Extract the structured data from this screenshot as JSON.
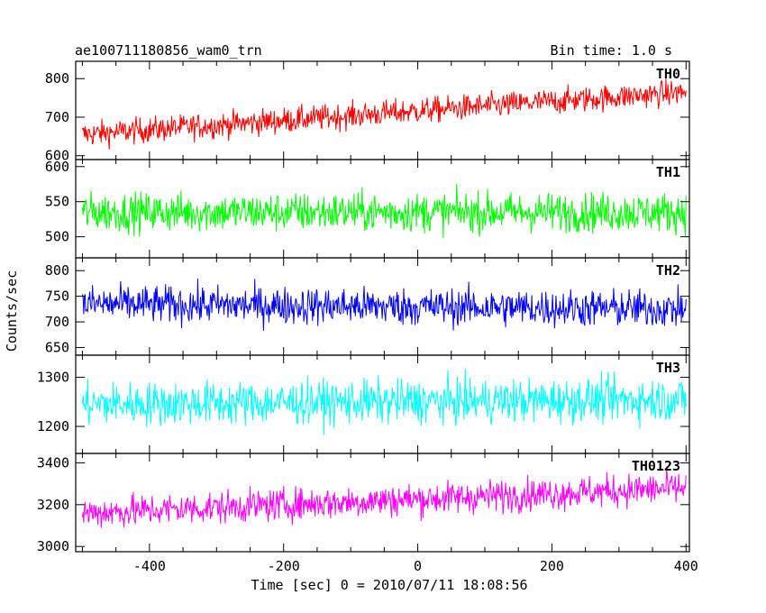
{
  "chart_data": {
    "type": "line",
    "title": "ae100711180856_wam0_trn",
    "bin_time_label": "Bin time: 1.0 s",
    "xlabel": "Time [sec] 0 = 2010/07/11 18:08:56",
    "ylabel": "Counts/sec",
    "xlim": [
      -510,
      405
    ],
    "x_ticks": [
      -400,
      -200,
      0,
      200,
      400
    ],
    "x_step": 1,
    "x_start": -500,
    "x_end": 400,
    "panels": [
      {
        "name": "TH0",
        "color": "#ff0000",
        "ylim": [
          590,
          845
        ],
        "y_ticks": [
          600,
          700,
          800
        ],
        "trend_start": 655,
        "trend_end": 765,
        "noise": 30
      },
      {
        "name": "TH1",
        "color": "#00ff00",
        "ylim": [
          470,
          610
        ],
        "y_ticks": [
          500,
          550,
          600
        ],
        "trend_start": 535,
        "trend_end": 535,
        "noise": 25
      },
      {
        "name": "TH2",
        "color": "#0000ff",
        "ylim": [
          635,
          825
        ],
        "y_ticks": [
          650,
          700,
          750,
          800
        ],
        "trend_start": 735,
        "trend_end": 725,
        "noise": 33
      },
      {
        "name": "TH3",
        "color": "#00ffff",
        "ylim": [
          1145,
          1345
        ],
        "y_ticks": [
          1200,
          1300
        ],
        "trend_start": 1245,
        "trend_end": 1255,
        "noise": 40
      },
      {
        "name": "TH0123",
        "color": "#ff00ff",
        "ylim": [
          2975,
          3445
        ],
        "y_ticks": [
          3000,
          3200,
          3400
        ],
        "trend_start": 3160,
        "trend_end": 3280,
        "noise": 70
      }
    ]
  }
}
